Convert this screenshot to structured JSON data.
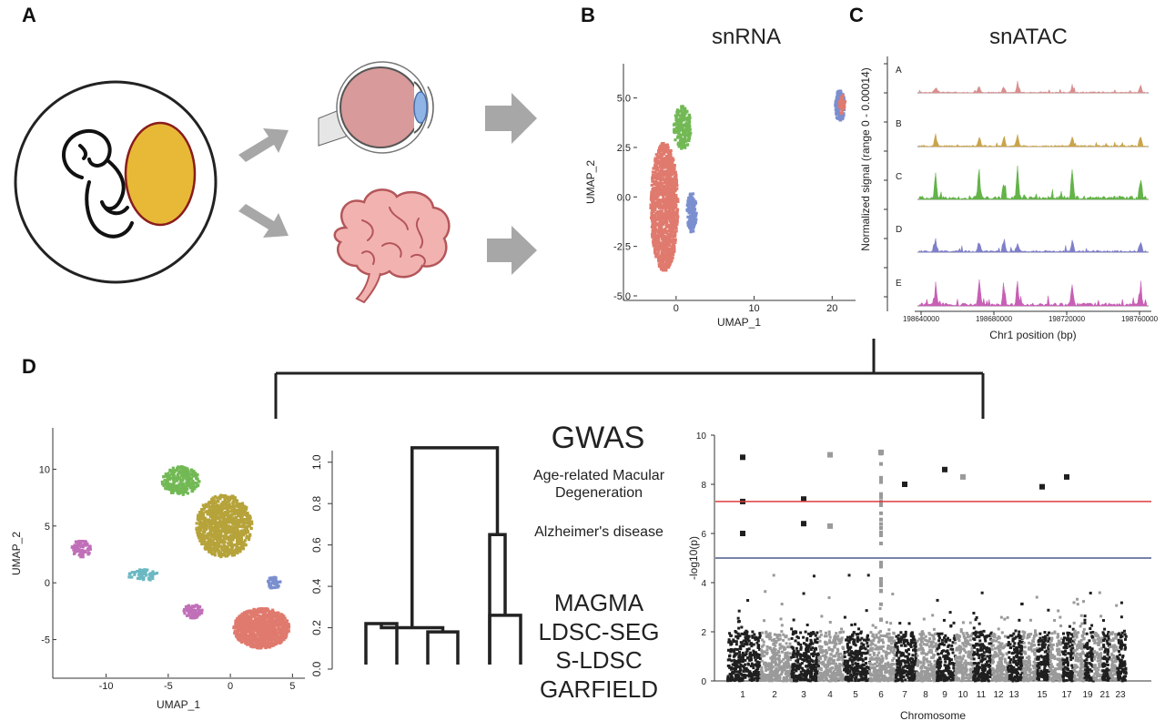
{
  "panels": {
    "a": {
      "letter": "A"
    },
    "b": {
      "letter": "B",
      "title": "snRNA"
    },
    "c": {
      "letter": "C",
      "title": "snATAC"
    },
    "d": {
      "letter": "D"
    }
  },
  "colors": {
    "red": "#e07a6e",
    "green": "#72b955",
    "blue": "#7b8fcf",
    "olive": "#b6a33a",
    "purple": "#c06fb8",
    "cyan": "#6ab8c2",
    "yolk": "#e7b937",
    "eye": "#d89a9a",
    "brain": "#f2b3b0",
    "arrow": "#a7a7a7",
    "dark_manhattan": "#1f1f1f",
    "light_manhattan": "#9a9a9a",
    "sig_line": "#e03b3b",
    "suggest_line": "#4a5a8a",
    "atac_a": "#d98f8f",
    "atac_b": "#c9a44a",
    "atac_c": "#63b348",
    "atac_d": "#7f7fc9",
    "atac_e": "#c85fb5"
  },
  "icons": {
    "embryo": "fetus-in-womb-icon",
    "eye": "eye-icon",
    "brain": "brain-icon",
    "arrows": "right-arrow-icon"
  },
  "chart_data": [
    {
      "id": "snrna_umap",
      "type": "scatter",
      "title": "snRNA",
      "xlabel": "UMAP_1",
      "ylabel": "UMAP_2",
      "xticks": [
        "0",
        "10",
        "20"
      ],
      "yticks": [
        "5.0",
        "2.5",
        "0.0",
        "-2.5",
        "-5.0"
      ],
      "xlim": [
        -5,
        23
      ],
      "ylim": [
        -5,
        6.5
      ],
      "series": [
        {
          "color": "#e07a6e",
          "clusters": [
            {
              "cx": -1.5,
              "cy": -0.5,
              "w": 3.5,
              "h": 6.5,
              "n": 1200
            }
          ]
        },
        {
          "color": "#72b955",
          "clusters": [
            {
              "cx": 0.8,
              "cy": 3.5,
              "w": 2.2,
              "h": 2.2,
              "n": 180
            }
          ]
        },
        {
          "color": "#7b8fcf",
          "clusters": [
            {
              "cx": 2.0,
              "cy": -0.8,
              "w": 1.2,
              "h": 2.0,
              "n": 150
            },
            {
              "cx": 21.0,
              "cy": 4.6,
              "w": 1.2,
              "h": 1.6,
              "n": 130
            }
          ]
        },
        {
          "color": "#e07a6e",
          "clusters": [
            {
              "cx": 21.3,
              "cy": 4.7,
              "w": 0.8,
              "h": 1.0,
              "n": 40
            }
          ]
        }
      ]
    },
    {
      "id": "snatac_tracks",
      "type": "area",
      "title": "snATAC",
      "xlabel": "Chr1 position (bp)",
      "ylabel": "Normalized signal (range 0 - 0.00014)",
      "xticks": [
        "198640000",
        "198680000",
        "198720000",
        "198760000"
      ],
      "tracks": [
        {
          "name": "A",
          "color": "#d98f8f",
          "scale": 0.3
        },
        {
          "name": "B",
          "color": "#c9a44a",
          "scale": 0.4
        },
        {
          "name": "C",
          "color": "#63b348",
          "scale": 1.0
        },
        {
          "name": "D",
          "color": "#7f7fc9",
          "scale": 0.5
        },
        {
          "name": "E",
          "color": "#c85fb5",
          "scale": 0.9
        }
      ]
    },
    {
      "id": "combined_umap",
      "type": "scatter",
      "xlabel": "UMAP_1",
      "ylabel": "UMAP_2",
      "xticks": [
        "-10",
        "-5",
        "0",
        "5"
      ],
      "yticks": [
        "10",
        "5",
        "0",
        "-5"
      ],
      "xlim": [
        -14,
        6
      ],
      "ylim": [
        -8,
        13
      ],
      "series": [
        {
          "color": "#b6a33a",
          "clusters": [
            {
              "cx": -0.5,
              "cy": 5,
              "w": 4.5,
              "h": 5.5,
              "n": 900
            }
          ]
        },
        {
          "color": "#e07a6e",
          "clusters": [
            {
              "cx": 2.5,
              "cy": -4,
              "w": 4.5,
              "h": 3.5,
              "n": 900
            }
          ]
        },
        {
          "color": "#72b955",
          "clusters": [
            {
              "cx": -4,
              "cy": 9,
              "w": 3.0,
              "h": 2.5,
              "n": 250
            }
          ]
        },
        {
          "color": "#c06fb8",
          "clusters": [
            {
              "cx": -12,
              "cy": 3,
              "w": 1.5,
              "h": 1.5,
              "n": 80
            },
            {
              "cx": -3,
              "cy": -2.5,
              "w": 1.5,
              "h": 1.2,
              "n": 70
            }
          ]
        },
        {
          "color": "#6ab8c2",
          "clusters": [
            {
              "cx": -7,
              "cy": 0.7,
              "w": 2.5,
              "h": 1.0,
              "n": 50
            }
          ]
        },
        {
          "color": "#7b8fcf",
          "clusters": [
            {
              "cx": 3.5,
              "cy": 0,
              "w": 1.2,
              "h": 1.0,
              "n": 40
            }
          ]
        }
      ]
    },
    {
      "id": "dendrogram",
      "type": "dendrogram",
      "yticks": [
        "1.0",
        "0.8",
        "0.6",
        "0.4",
        "0.2",
        "0.0"
      ],
      "ylim": [
        0,
        1.1
      ],
      "title": "GWAS",
      "annotations": [
        "Age-related Macular Degeneration",
        "Alzheimer's disease"
      ],
      "methods": [
        "MAGMA",
        "LDSC-SEG",
        "S-LDSC",
        "GARFIELD"
      ],
      "leaves": 6,
      "merges": [
        {
          "a": 0,
          "b": 1,
          "h": 0.22
        },
        {
          "a": 2,
          "b": 3,
          "h": 0.18
        },
        {
          "a": 4,
          "b": 5,
          "h": 0.26
        },
        {
          "a": "m0",
          "b": "m1",
          "h": 0.2
        },
        {
          "a": "x4",
          "b": "m2",
          "h": 0.65
        },
        {
          "a": "m3",
          "b": "m4",
          "h": 1.07
        }
      ]
    },
    {
      "id": "manhattan",
      "type": "scatter",
      "xlabel": "Chromosome",
      "ylabel": "-log10(p)",
      "yticks": [
        "10",
        "8",
        "6",
        "4",
        "2",
        "0"
      ],
      "ylim": [
        0,
        10
      ],
      "xticks": [
        "1",
        "2",
        "3",
        "4",
        "5",
        "6",
        "7",
        "8",
        "9",
        "10",
        "11",
        "12",
        "13",
        "15",
        "17",
        "19",
        "21",
        "23"
      ],
      "significance_line": 7.3,
      "suggestive_line": 5.0,
      "top_hits": [
        {
          "chr": 1,
          "y": 9.1
        },
        {
          "chr": 1,
          "y": 7.3
        },
        {
          "chr": 1,
          "y": 6.0
        },
        {
          "chr": 3,
          "y": 7.4
        },
        {
          "chr": 3,
          "y": 6.4
        },
        {
          "chr": 4,
          "y": 9.2
        },
        {
          "chr": 4,
          "y": 6.3
        },
        {
          "chr": 6,
          "y": 9.3
        },
        {
          "chr": 7,
          "y": 8.0
        },
        {
          "chr": 9,
          "y": 8.6
        },
        {
          "chr": 10,
          "y": 8.3
        },
        {
          "chr": 15,
          "y": 7.9
        },
        {
          "chr": 17,
          "y": 8.3
        }
      ]
    }
  ]
}
